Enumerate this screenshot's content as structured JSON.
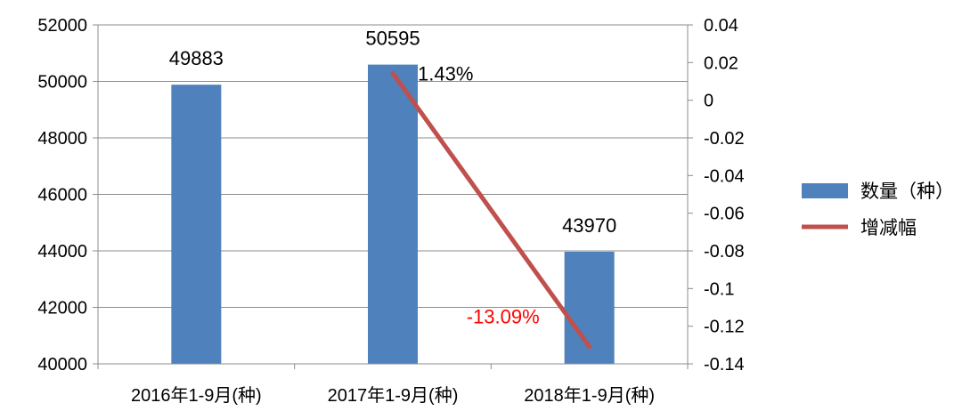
{
  "chart_data": {
    "type": "bar",
    "categories": [
      "2016年1-9月(种)",
      "2017年1-9月(种)",
      "2018年1-9月(种)"
    ],
    "series": [
      {
        "name": "数量（种）",
        "type": "bar",
        "axis": "left",
        "values": [
          49883,
          50595,
          43970
        ],
        "labels": [
          "49883",
          "50595",
          "43970"
        ],
        "color": "#4f81bd"
      },
      {
        "name": "增减幅",
        "type": "line",
        "axis": "right",
        "points": [
          {
            "category_index": 1,
            "value": 0.0143
          },
          {
            "category_index": 2,
            "value": -0.1309
          }
        ],
        "labels": [
          "1.43%",
          "-13.09%"
        ],
        "label_colors": [
          "#000000",
          "#ff0000"
        ],
        "color": "#c0504d"
      }
    ],
    "left_axis": {
      "ylim": [
        40000,
        52000
      ],
      "ticks": [
        "40000",
        "42000",
        "44000",
        "46000",
        "48000",
        "50000",
        "52000"
      ]
    },
    "right_axis": {
      "ylim": [
        -0.14,
        0.04
      ],
      "ticks": [
        "-0.14",
        "-0.12",
        "-0.1",
        "-0.08",
        "-0.06",
        "-0.04",
        "-0.02",
        "0",
        "0.02",
        "0.04"
      ]
    },
    "grid": true,
    "legend_position": "right",
    "title": "",
    "xlabel": "",
    "ylabel": ""
  }
}
